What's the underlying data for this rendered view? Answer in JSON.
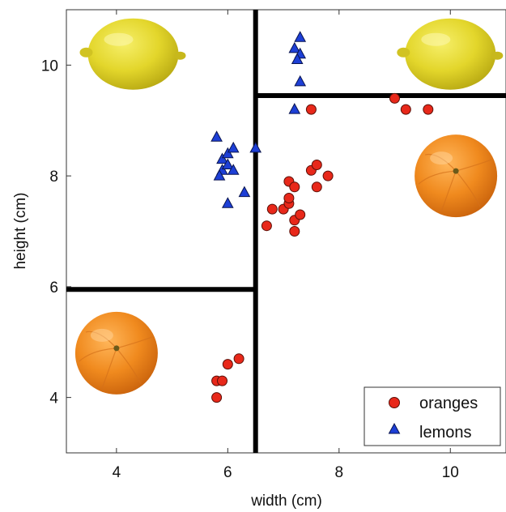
{
  "chart_data": {
    "type": "scatter",
    "title": "",
    "xlabel": "width (cm)",
    "ylabel": "height (cm)",
    "xlim": [
      3.1,
      11
    ],
    "ylim": [
      3,
      11
    ],
    "xticks": [
      4,
      6,
      8,
      10
    ],
    "yticks": [
      4,
      6,
      8,
      10
    ],
    "grid": false,
    "legend_position": "bottom-right",
    "series": [
      {
        "name": "oranges",
        "marker": "circle",
        "color": "#e8281a",
        "points": [
          [
            5.8,
            4.0
          ],
          [
            5.8,
            4.3
          ],
          [
            5.9,
            4.3
          ],
          [
            6.0,
            4.6
          ],
          [
            6.2,
            4.7
          ],
          [
            6.7,
            7.1
          ],
          [
            6.8,
            7.4
          ],
          [
            7.0,
            7.4
          ],
          [
            7.1,
            7.5
          ],
          [
            7.1,
            7.6
          ],
          [
            7.1,
            7.9
          ],
          [
            7.2,
            7.8
          ],
          [
            7.2,
            7.2
          ],
          [
            7.2,
            7.0
          ],
          [
            7.3,
            7.3
          ],
          [
            7.5,
            8.1
          ],
          [
            7.6,
            8.2
          ],
          [
            7.6,
            7.8
          ],
          [
            7.8,
            8.0
          ],
          [
            7.5,
            9.2
          ],
          [
            9.0,
            9.4
          ],
          [
            9.2,
            9.2
          ],
          [
            9.6,
            9.2
          ]
        ]
      },
      {
        "name": "lemons",
        "marker": "triangle",
        "color": "#1d3fd6",
        "points": [
          [
            5.8,
            8.7
          ],
          [
            5.9,
            8.3
          ],
          [
            6.0,
            8.4
          ],
          [
            6.1,
            8.5
          ],
          [
            5.9,
            8.1
          ],
          [
            6.0,
            8.2
          ],
          [
            5.85,
            8.0
          ],
          [
            6.1,
            8.1
          ],
          [
            6.0,
            7.5
          ],
          [
            6.3,
            7.7
          ],
          [
            6.5,
            8.5
          ],
          [
            7.2,
            10.3
          ],
          [
            7.3,
            10.5
          ],
          [
            7.3,
            10.2
          ],
          [
            7.25,
            10.1
          ],
          [
            7.3,
            9.7
          ],
          [
            7.2,
            9.2
          ]
        ]
      }
    ],
    "decision_boundaries": [
      {
        "orientation": "vertical",
        "x": 6.5,
        "y_from": 3,
        "y_to": 11
      },
      {
        "orientation": "horizontal",
        "y": 5.95,
        "x_from": 3.1,
        "x_to": 6.5
      },
      {
        "orientation": "horizontal",
        "y": 9.45,
        "x_from": 6.5,
        "x_to": 11
      }
    ],
    "region_images": [
      {
        "fruit": "lemon-image",
        "x": 4.3,
        "y": 10.2
      },
      {
        "fruit": "lemon-image",
        "x": 10.0,
        "y": 10.2
      },
      {
        "fruit": "orange-image",
        "x": 10.1,
        "y": 8.0
      },
      {
        "fruit": "orange-image",
        "x": 4.0,
        "y": 4.8
      }
    ]
  }
}
